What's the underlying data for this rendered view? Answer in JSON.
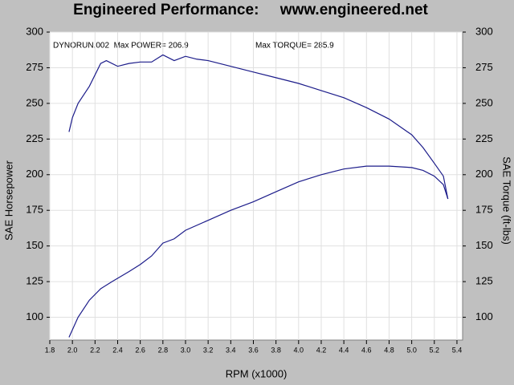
{
  "chart_data": {
    "type": "line",
    "title": "Engineered Performance:     www.engineered.net",
    "x_label": "RPM (x1000)",
    "y_label": "SAE Horsepower",
    "y2_label": "SAE Torque (ft-lbs)",
    "annotations": [
      "DYNORUN.002  Max POWER= 206.9",
      "Max TORQUE= 285.9"
    ],
    "xlim": [
      1.8,
      5.45
    ],
    "xticks": [
      1.8,
      {
        "value": 2,
        "label": "2.0"
      },
      2.2,
      2.4,
      2.6,
      2.8,
      {
        "value": 3,
        "label": "3.0"
      },
      3.2,
      3.4,
      3.6,
      3.8,
      {
        "value": 4,
        "label": "4.0"
      },
      4.2,
      4.4,
      4.6,
      4.8,
      {
        "value": 5,
        "label": "5.0"
      },
      5.2,
      5.4
    ],
    "ylim": [
      84,
      300
    ],
    "yticks": [
      100,
      125,
      150,
      175,
      200,
      225,
      250,
      275,
      300
    ],
    "y2lim": [
      84,
      300
    ],
    "y2ticks": [
      100,
      125,
      150,
      175,
      200,
      225,
      250,
      275,
      300
    ],
    "grid": true,
    "series": [
      {
        "color": "#1c1c8a",
        "x": [
          1.97,
          2.05,
          2.15,
          2.25,
          2.35,
          2.5,
          2.6,
          2.7,
          2.8,
          2.9,
          3.0,
          3.2,
          3.4,
          3.6,
          3.8,
          4.0,
          4.2,
          4.4,
          4.6,
          4.8,
          5.0,
          5.1,
          5.2,
          5.28,
          5.32
        ],
        "values": [
          86,
          100,
          112,
          120,
          125,
          132,
          137,
          143,
          152,
          155,
          161,
          168,
          175,
          181,
          188,
          195,
          200,
          204,
          206,
          206,
          205,
          203,
          199,
          193,
          183
        ]
      },
      {
        "color": "#1c1c8a",
        "axis": "y2",
        "x": [
          1.97,
          2.0,
          2.05,
          2.15,
          2.25,
          2.3,
          2.4,
          2.5,
          2.6,
          2.7,
          2.8,
          2.9,
          3.0,
          3.1,
          3.2,
          3.4,
          3.6,
          3.8,
          4.0,
          4.2,
          4.4,
          4.6,
          4.8,
          5.0,
          5.1,
          5.2,
          5.28,
          5.32
        ],
        "values": [
          230,
          240,
          250,
          262,
          278,
          280,
          276,
          278,
          279,
          279,
          284,
          280,
          283,
          281,
          280,
          276,
          272,
          268,
          264,
          259,
          254,
          247,
          239,
          228,
          219,
          208,
          199,
          183
        ]
      }
    ]
  }
}
